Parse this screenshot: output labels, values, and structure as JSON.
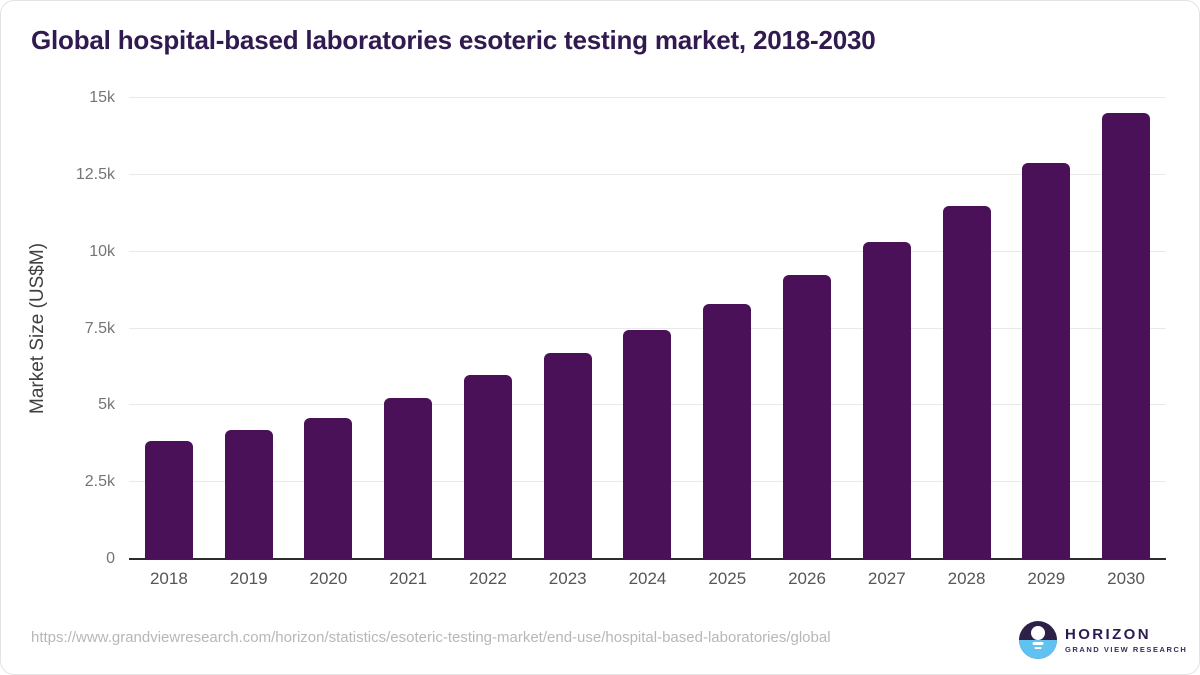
{
  "colors": {
    "bar": "#4a1159",
    "title": "#301a4f",
    "gridline": "#e9e9e9",
    "axis_line": "#2d2d2d",
    "logo_purple": "#2e2148",
    "logo_blue": "#60c2f1"
  },
  "chart_data": {
    "type": "bar",
    "title": "Global hospital-based laboratories esoteric testing market, 2018-2030",
    "xlabel": "",
    "ylabel": "Market Size (US$M)",
    "ylim": [
      0,
      15000
    ],
    "grid": true,
    "legend": "none",
    "categories": [
      "2018",
      "2019",
      "2020",
      "2021",
      "2022",
      "2023",
      "2024",
      "2025",
      "2026",
      "2027",
      "2028",
      "2029",
      "2030"
    ],
    "values": [
      3850,
      4200,
      4600,
      5250,
      6000,
      6700,
      7450,
      8300,
      9250,
      10300,
      11500,
      12900,
      14500
    ],
    "yticks": [
      {
        "value": 0,
        "label": "0"
      },
      {
        "value": 2500,
        "label": "2.5k"
      },
      {
        "value": 5000,
        "label": "5k"
      },
      {
        "value": 7500,
        "label": "7.5k"
      },
      {
        "value": 10000,
        "label": "10k"
      },
      {
        "value": 12500,
        "label": "12.5k"
      },
      {
        "value": 15000,
        "label": "15k"
      }
    ]
  },
  "footer": {
    "url": "https://www.grandviewresearch.com/horizon/statistics/esoteric-testing-market/end-use/hospital-based-laboratories/global",
    "logo": {
      "name": "HORIZON",
      "subtitle": "GRAND VIEW RESEARCH"
    }
  }
}
